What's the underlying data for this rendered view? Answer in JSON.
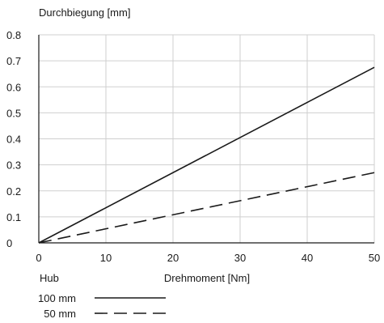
{
  "chart_data": {
    "type": "line",
    "ylabel": "Durchbiegung [mm]",
    "xlabel": "Drehmoment [Nm]",
    "xlim": [
      0,
      50
    ],
    "ylim": [
      0,
      0.8
    ],
    "x_ticks": [
      "0",
      "10",
      "20",
      "30",
      "40",
      "50"
    ],
    "y_ticks": [
      "0",
      "0.1",
      "0.2",
      "0.3",
      "0.4",
      "0.5",
      "0.6",
      "0.7",
      "0.8"
    ],
    "grid": true,
    "legend_title": "Hub",
    "legend_position": "bottom-left",
    "series": [
      {
        "name": "100 mm",
        "style": "solid",
        "color": "#1a1a1a",
        "x": [
          0,
          50
        ],
        "y": [
          0,
          0.675
        ]
      },
      {
        "name": "50 mm",
        "style": "dashed",
        "color": "#1a1a1a",
        "x": [
          0,
          50
        ],
        "y": [
          0,
          0.27
        ]
      }
    ]
  }
}
